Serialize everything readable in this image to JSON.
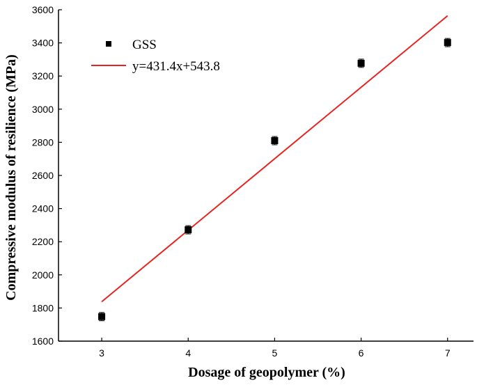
{
  "chart_data": {
    "type": "scatter",
    "xlabel": "Dosage of geopolymer (%)",
    "ylabel": "Compressive modulus of resilience (MPa)",
    "xlim": [
      2.5,
      7.3
    ],
    "ylim": [
      1600,
      3600
    ],
    "x_ticks": [
      3,
      4,
      5,
      6,
      7
    ],
    "y_ticks": [
      1600,
      1800,
      2000,
      2200,
      2400,
      2600,
      2800,
      3000,
      3200,
      3400,
      3600
    ],
    "grid": false,
    "legend_position": "top-left",
    "series": [
      {
        "name": "GSS",
        "kind": "scatter",
        "marker": "square",
        "color": "#000000",
        "x": [
          3,
          4,
          5,
          6,
          7
        ],
        "y": [
          1748,
          2272,
          2810,
          3277,
          3402
        ],
        "error": [
          25,
          25,
          25,
          25,
          25
        ]
      },
      {
        "name": "y=431.4x+543.8",
        "kind": "line",
        "color": "#e8231f",
        "slope": 431.4,
        "intercept": 543.8,
        "x_range": [
          3,
          7
        ]
      }
    ]
  }
}
